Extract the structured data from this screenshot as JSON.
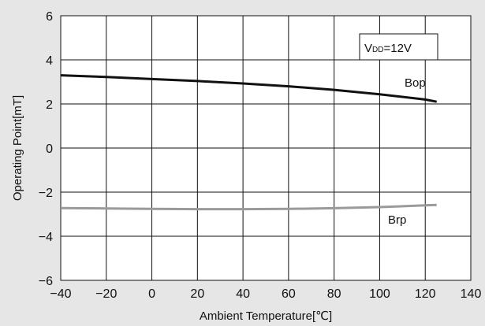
{
  "chart_data": {
    "type": "line",
    "title": "",
    "xlabel": "Ambient Temperature[℃]",
    "ylabel": "Operating Point[mT]",
    "xlim": [
      -40,
      140
    ],
    "ylim": [
      -6,
      6
    ],
    "x_ticks": [
      -40,
      -20,
      0,
      20,
      40,
      60,
      80,
      100,
      120,
      140
    ],
    "y_ticks": [
      -6,
      -4,
      -2,
      0,
      2,
      4,
      6
    ],
    "x_tick_labels": [
      "−40",
      "−20",
      "0",
      "20",
      "40",
      "60",
      "80",
      "100",
      "120",
      "140"
    ],
    "y_tick_labels": [
      "−6",
      "−4",
      "−2",
      "0",
      "2",
      "4",
      "6"
    ],
    "grid": true,
    "annotation": {
      "main": "V",
      "sub": "DD",
      "rest": "=12V"
    },
    "series": [
      {
        "name": "Bop",
        "color": "#111111",
        "x": [
          -40,
          -20,
          0,
          20,
          40,
          60,
          80,
          100,
          120,
          125
        ],
        "y": [
          3.3,
          3.22,
          3.13,
          3.04,
          2.93,
          2.8,
          2.64,
          2.44,
          2.2,
          2.1
        ]
      },
      {
        "name": "Brp",
        "color": "#9a9a9a",
        "x": [
          -40,
          -20,
          0,
          20,
          40,
          60,
          80,
          100,
          120,
          125
        ],
        "y": [
          -2.72,
          -2.74,
          -2.76,
          -2.77,
          -2.77,
          -2.76,
          -2.73,
          -2.68,
          -2.6,
          -2.58
        ]
      }
    ]
  }
}
